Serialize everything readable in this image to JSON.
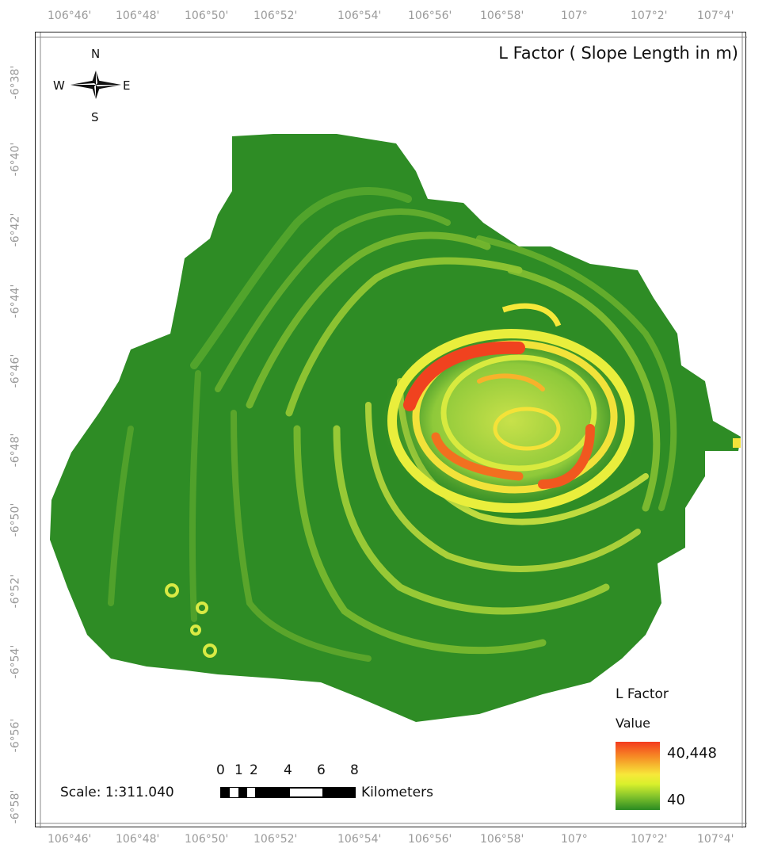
{
  "title": "L Factor ( Slope Length in m)",
  "top_longitudes": [
    "106°46'",
    "106°48'",
    "106°50'",
    "106°52'",
    "106°54'",
    "106°56'",
    "106°58'",
    "107°",
    "107°2'",
    "107°4'"
  ],
  "bottom_longitudes": [
    "106°46'",
    "106°48'",
    "106°50'",
    "106°52'",
    "106°54'",
    "106°56'",
    "106°58'",
    "107°",
    "107°2'",
    "107°4'"
  ],
  "latitudes": [
    "-6°38'",
    "-6°40'",
    "-6°42'",
    "-6°44'",
    "-6°46'",
    "-6°48'",
    "-6°50'",
    "-6°52'",
    "-6°54'",
    "-6°56'",
    "-6°58'"
  ],
  "compass": {
    "n": "N",
    "s": "S",
    "e": "E",
    "w": "W"
  },
  "legend": {
    "title": "L Factor",
    "subtitle": "Value",
    "high": "40,448",
    "low": "40",
    "colors": {
      "high": "#f43b1f",
      "mid": "#f7e83a",
      "low": "#2a8b22"
    }
  },
  "scale": {
    "text": "Scale: 1:311.040",
    "ticks": [
      "0",
      "1",
      "2",
      "4",
      "6",
      "8"
    ],
    "unit": "Kilometers"
  }
}
